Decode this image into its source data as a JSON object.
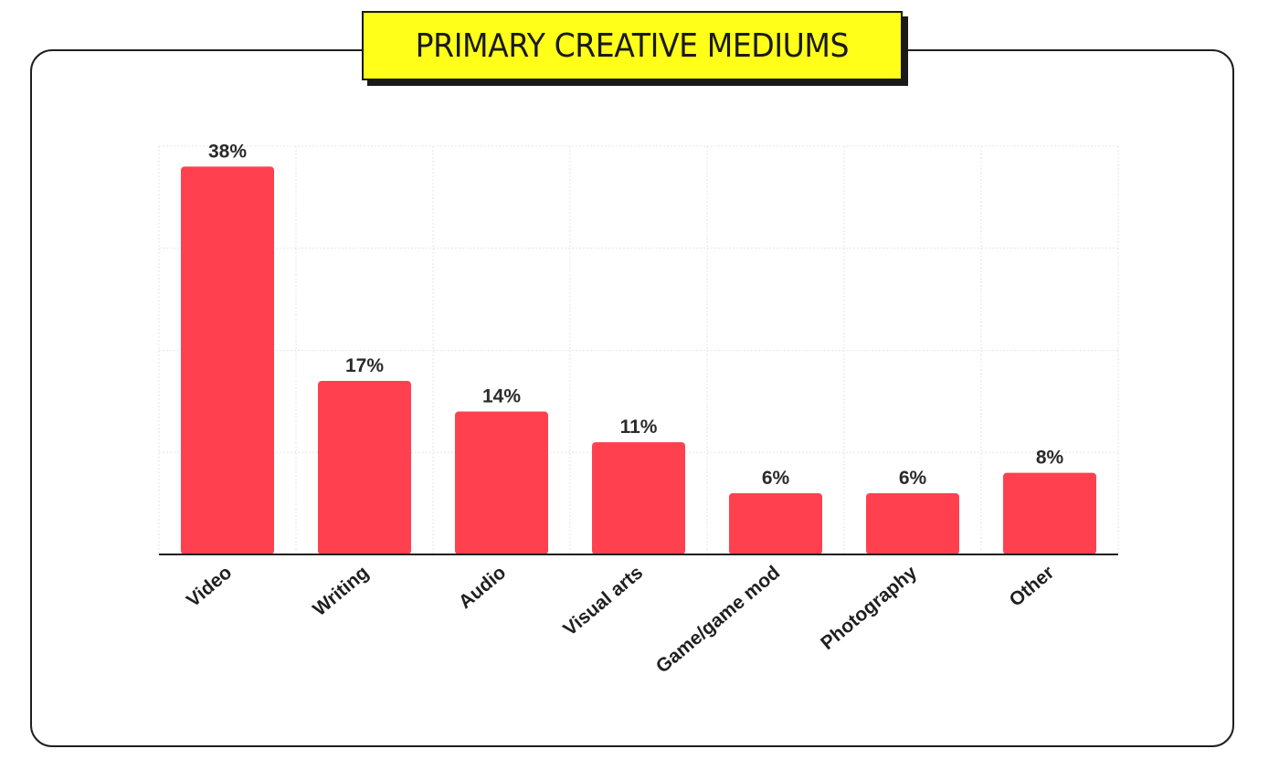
{
  "title": "PRIMARY CREATIVE MEDIUMS",
  "colors": {
    "bar": "#ff414f",
    "title_bg": "#ffff1a",
    "grid": "#e6e6e6",
    "axis": "#1f1f1f"
  },
  "chart_data": {
    "type": "bar",
    "title": "PRIMARY CREATIVE MEDIUMS",
    "xlabel": "",
    "ylabel": "",
    "categories": [
      "Video",
      "Writing",
      "Audio",
      "Visual arts",
      "Game/game mod",
      "Photography",
      "Other"
    ],
    "values": [
      38,
      17,
      14,
      11,
      6,
      6,
      8
    ],
    "value_labels": [
      "38%",
      "17%",
      "14%",
      "11%",
      "6%",
      "6%",
      "8%"
    ],
    "unit": "%",
    "ylim": [
      0,
      40
    ],
    "grid": true,
    "y_tick_labels_shown": false,
    "x_tick_label_rotation": "diagonal"
  }
}
